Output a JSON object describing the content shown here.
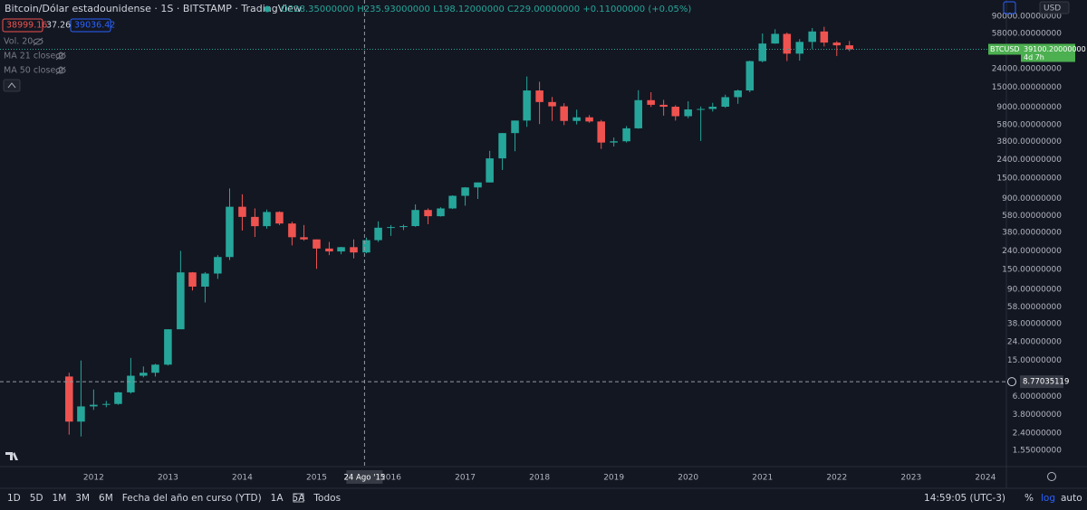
{
  "header": {
    "title": "Bitcoin/Dólar estadounidense · 1S · BITSTAMP · TradingView",
    "ohlc": "O228.35000000 H235.93000000 L198.12000000 C229.00000000 +0.11000000 (+0.05%)",
    "sell": "38999.16",
    "spread": "37.26",
    "buy": "39036.42",
    "indicators": [
      "Vol. 20",
      "MA 21 close 0",
      "MA 50 close 0"
    ]
  },
  "chart_data": {
    "type": "candlestick",
    "currency": "USD",
    "log_scale": true,
    "grid": false,
    "up_color": "#26a69a",
    "down_color": "#ef5350",
    "x": [
      2011.67,
      2011.83,
      2012.0,
      2012.17,
      2012.33,
      2012.5,
      2012.67,
      2012.83,
      2013.0,
      2013.17,
      2013.33,
      2013.5,
      2013.67,
      2013.83,
      2014.0,
      2014.17,
      2014.33,
      2014.5,
      2014.67,
      2014.83,
      2015.0,
      2015.17,
      2015.33,
      2015.5,
      2015.67,
      2015.83,
      2016.0,
      2016.17,
      2016.33,
      2016.5,
      2016.67,
      2016.83,
      2017.0,
      2017.17,
      2017.33,
      2017.5,
      2017.67,
      2017.83,
      2018.0,
      2018.17,
      2018.33,
      2018.5,
      2018.67,
      2018.83,
      2019.0,
      2019.17,
      2019.33,
      2019.5,
      2019.67,
      2019.83,
      2020.0,
      2020.17,
      2020.33,
      2020.5,
      2020.67,
      2020.83,
      2021.0,
      2021.17,
      2021.33,
      2021.5,
      2021.67,
      2021.83,
      2022.0,
      2022.17
    ],
    "open": [
      10,
      3.2,
      4.7,
      4.9,
      5.0,
      6.7,
      10.2,
      11.0,
      13.5,
      33,
      139,
      97,
      135,
      205,
      730,
      565,
      447,
      640,
      478,
      338,
      320,
      254,
      236,
      263,
      230,
      314,
      430,
      437,
      448,
      673,
      575,
      700,
      963,
      1190,
      1350,
      2480,
      4700,
      6450,
      13800,
      10300,
      9240,
      6390,
      7000,
      6300,
      3700,
      3820,
      5300,
      10800,
      9600,
      9150,
      7200,
      8550,
      8650,
      9150,
      11650,
      13800,
      28950,
      45200,
      57700,
      35000,
      47100,
      61300,
      46300,
      43200
    ],
    "high": [
      11,
      15,
      7.2,
      5.4,
      6.8,
      16,
      12.9,
      13.8,
      33,
      240,
      140,
      140,
      215,
      1160,
      1000,
      700,
      680,
      650,
      500,
      460,
      320,
      300,
      265,
      320,
      335,
      505,
      460,
      465,
      775,
      700,
      720,
      975,
      1200,
      1350,
      3000,
      4700,
      6450,
      19650,
      17200,
      11700,
      10000,
      8500,
      7400,
      6550,
      4200,
      5600,
      13900,
      13200,
      10900,
      9500,
      10500,
      9200,
      10100,
      12400,
      14100,
      29300,
      58300,
      64900,
      59600,
      50500,
      66900,
      69000,
      48000,
      48200
    ],
    "low": [
      2.3,
      2.2,
      4.3,
      4.6,
      4.9,
      6.5,
      9.8,
      10.0,
      13.2,
      50,
      88,
      65,
      118,
      190,
      400,
      340,
      420,
      460,
      275,
      310,
      152,
      215,
      220,
      198,
      225,
      300,
      350,
      405,
      440,
      470,
      570,
      690,
      750,
      890,
      1350,
      1850,
      2970,
      5500,
      5900,
      6400,
      5750,
      5850,
      6100,
      3150,
      3350,
      3700,
      5250,
      9100,
      7300,
      6450,
      6850,
      3850,
      8100,
      8900,
      9850,
      13200,
      28100,
      44900,
      29000,
      29300,
      39600,
      42000,
      33000,
      37200
    ],
    "close": [
      3.2,
      4.7,
      4.9,
      5.0,
      6.7,
      10.2,
      11.0,
      13.5,
      33,
      139,
      97,
      135,
      205,
      730,
      565,
      447,
      640,
      478,
      338,
      320,
      254,
      236,
      263,
      230,
      314,
      430,
      437,
      448,
      673,
      575,
      700,
      963,
      1190,
      1350,
      2480,
      4700,
      6450,
      13800,
      10300,
      9240,
      6390,
      7000,
      6300,
      3700,
      3820,
      5300,
      10800,
      9600,
      9150,
      7200,
      8550,
      8650,
      9150,
      11650,
      13800,
      28950,
      45200,
      57700,
      35000,
      47100,
      61300,
      46300,
      43200,
      39100.2
    ],
    "xlim": [
      2010.74,
      2024.27
    ],
    "xticks": [
      2012,
      2013,
      2014,
      2015,
      2016,
      2017,
      2018,
      2019,
      2020,
      2021,
      2022,
      2023,
      2024
    ],
    "ylim": [
      1.05,
      135800
    ],
    "yticks": [
      {
        "value": 90000,
        "label": "90000.00000000"
      },
      {
        "value": 58000,
        "label": "58000.00000000"
      },
      {
        "value": 38000,
        "label": "38000.00000000"
      },
      {
        "value": 24000,
        "label": "24000.00000000"
      },
      {
        "value": 15000,
        "label": "15000.00000000"
      },
      {
        "value": 9000,
        "label": "9000.00000000"
      },
      {
        "value": 5800,
        "label": "5800.00000000"
      },
      {
        "value": 3800,
        "label": "3800.00000000"
      },
      {
        "value": 2400,
        "label": "2400.00000000"
      },
      {
        "value": 1500,
        "label": "1500.00000000"
      },
      {
        "value": 900,
        "label": "900.00000000"
      },
      {
        "value": 580,
        "label": "580.00000000"
      },
      {
        "value": 380,
        "label": "380.00000000"
      },
      {
        "value": 240,
        "label": "240.00000000"
      },
      {
        "value": 150,
        "label": "150.00000000"
      },
      {
        "value": 90,
        "label": "90.00000000"
      },
      {
        "value": 58,
        "label": "58.00000000"
      },
      {
        "value": 38,
        "label": "38.00000000"
      },
      {
        "value": 24,
        "label": "24.00000000"
      },
      {
        "value": 15,
        "label": "15.00000000"
      },
      {
        "value": 6,
        "label": "6.00000000"
      },
      {
        "value": 3.8,
        "label": "3.80000000"
      },
      {
        "value": 2.4,
        "label": "2.40000000"
      },
      {
        "value": 1.55,
        "label": "1.55000000"
      }
    ],
    "symbol": "BTCUSD",
    "last_price": 39100.2,
    "last_price_label": "39100.20000000",
    "countdown": "4d 7h",
    "crosshair": {
      "x": 2015.645,
      "x_label": "24 Ago '15",
      "y": 8.77035119
    }
  },
  "toolbar": {
    "ranges": [
      "1D",
      "5D",
      "1M",
      "3M",
      "6M",
      "Fecha del año en curso (YTD)",
      "1A",
      "5A",
      "Todos"
    ],
    "time": "14:59:05 (UTC-3)",
    "percent": "%",
    "log": "log",
    "auto": "auto"
  }
}
